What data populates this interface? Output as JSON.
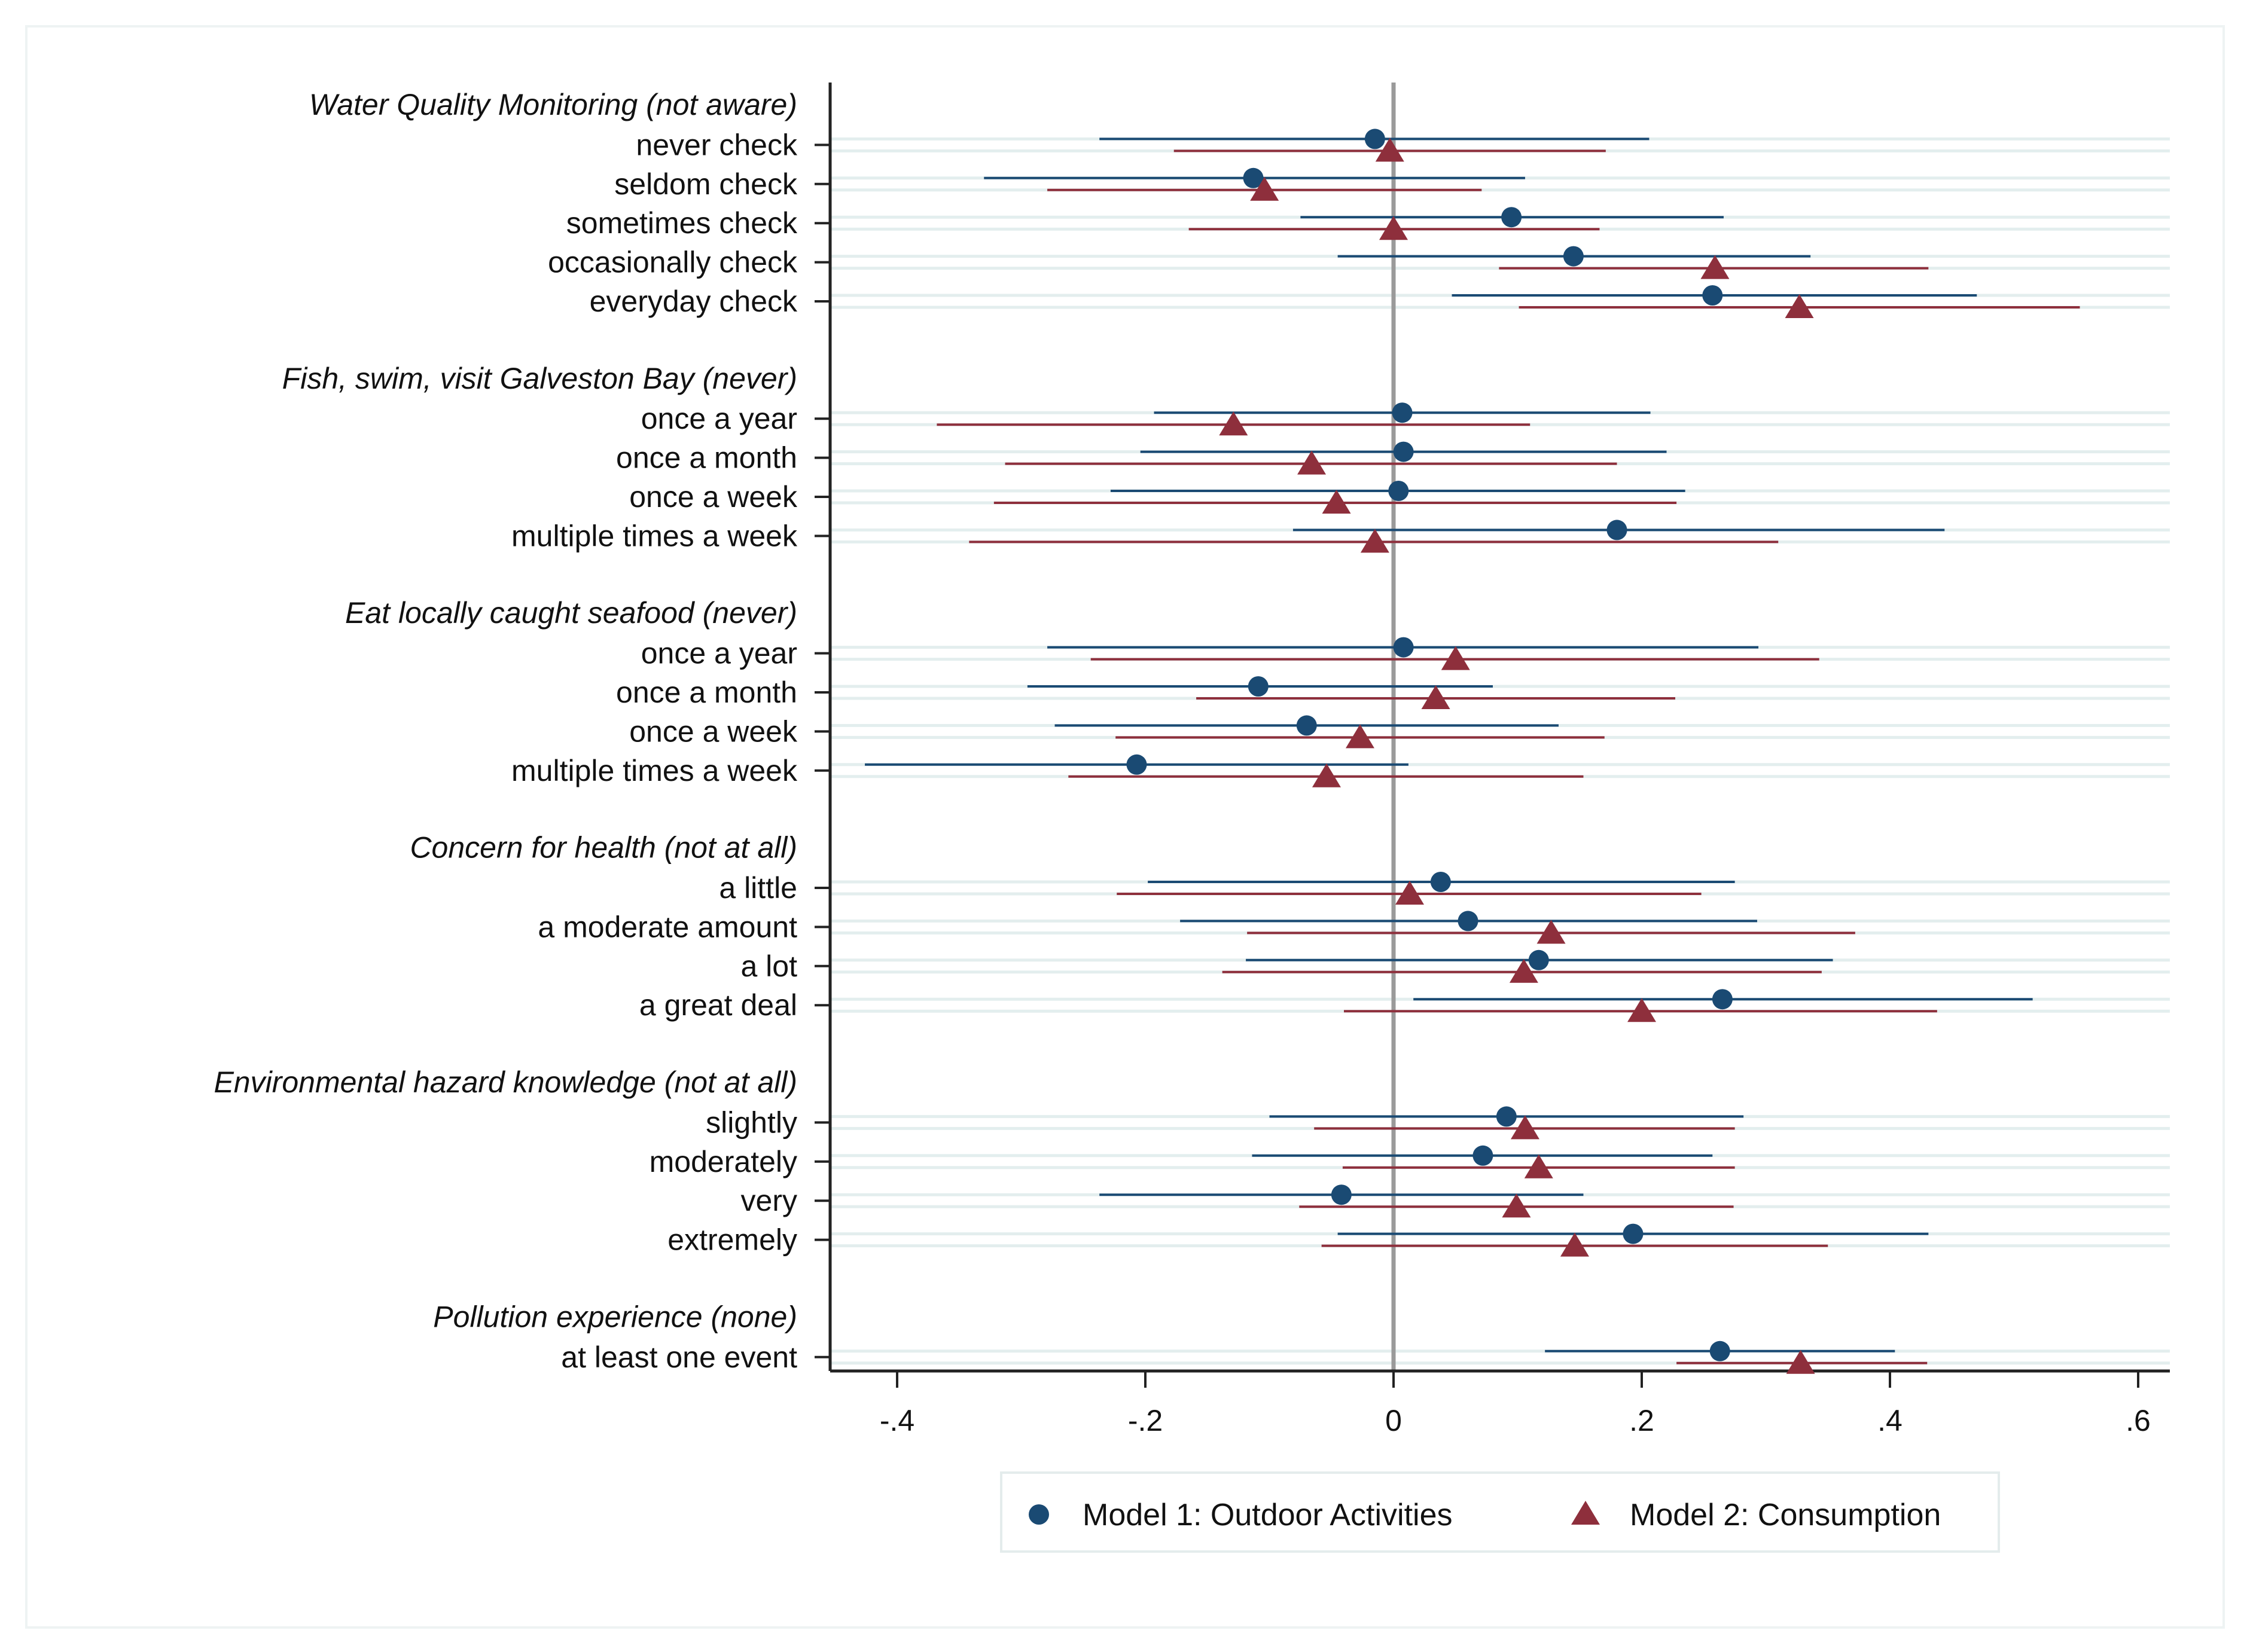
{
  "chart_data": {
    "type": "coefficient-plot",
    "title": "",
    "xlabel": "",
    "ylabel": "",
    "xlim": [
      -0.45,
      0.63
    ],
    "x_ticks": [
      -0.4,
      -0.2,
      0,
      0.2,
      0.4,
      0.6
    ],
    "x_tick_labels": [
      "-.4",
      "-.2",
      "0",
      ".2",
      ".4",
      ".6"
    ],
    "reference_line": 0,
    "grid": "horizontal",
    "legend_position": "bottom",
    "series": [
      {
        "name": "Model 1: Outdoor Activities",
        "marker": "circle",
        "color": "#1a4a73"
      },
      {
        "name": "Model 2: Consumption",
        "marker": "triangle",
        "color": "#8e2f3c"
      }
    ],
    "groups": [
      {
        "label": "Water Quality Monitoring (not aware)",
        "rows": [
          {
            "label": "never check",
            "m1": {
              "est": -0.015,
              "lo": -0.237,
              "hi": 0.206
            },
            "m2": {
              "est": -0.003,
              "lo": -0.177,
              "hi": 0.171
            }
          },
          {
            "label": "seldom check",
            "m1": {
              "est": -0.113,
              "lo": -0.33,
              "hi": 0.106
            },
            "m2": {
              "est": -0.104,
              "lo": -0.279,
              "hi": 0.071
            }
          },
          {
            "label": "sometimes check",
            "m1": {
              "est": 0.095,
              "lo": -0.075,
              "hi": 0.266
            },
            "m2": {
              "est": 0.0,
              "lo": -0.165,
              "hi": 0.166
            }
          },
          {
            "label": "occasionally check",
            "m1": {
              "est": 0.145,
              "lo": -0.045,
              "hi": 0.336
            },
            "m2": {
              "est": 0.259,
              "lo": 0.085,
              "hi": 0.431
            }
          },
          {
            "label": "everyday check",
            "m1": {
              "est": 0.257,
              "lo": 0.047,
              "hi": 0.47
            },
            "m2": {
              "est": 0.327,
              "lo": 0.101,
              "hi": 0.553
            }
          }
        ]
      },
      {
        "label": "Fish, swim, visit Galveston Bay (never)",
        "rows": [
          {
            "label": "once a year",
            "m1": {
              "est": 0.007,
              "lo": -0.193,
              "hi": 0.207
            },
            "m2": {
              "est": -0.129,
              "lo": -0.368,
              "hi": 0.11
            }
          },
          {
            "label": "once a month",
            "m1": {
              "est": 0.008,
              "lo": -0.204,
              "hi": 0.22
            },
            "m2": {
              "est": -0.066,
              "lo": -0.313,
              "hi": 0.18
            }
          },
          {
            "label": "once a week",
            "m1": {
              "est": 0.004,
              "lo": -0.228,
              "hi": 0.235
            },
            "m2": {
              "est": -0.046,
              "lo": -0.322,
              "hi": 0.228
            }
          },
          {
            "label": "multiple times a week",
            "m1": {
              "est": 0.18,
              "lo": -0.081,
              "hi": 0.444
            },
            "m2": {
              "est": -0.015,
              "lo": -0.342,
              "hi": 0.31
            }
          }
        ]
      },
      {
        "label": "Eat locally caught seafood (never)",
        "rows": [
          {
            "label": "once a year",
            "m1": {
              "est": 0.008,
              "lo": -0.279,
              "hi": 0.294
            },
            "m2": {
              "est": 0.05,
              "lo": -0.244,
              "hi": 0.343
            }
          },
          {
            "label": "once a month",
            "m1": {
              "est": -0.109,
              "lo": -0.295,
              "hi": 0.08
            },
            "m2": {
              "est": 0.034,
              "lo": -0.159,
              "hi": 0.227
            }
          },
          {
            "label": "once a week",
            "m1": {
              "est": -0.07,
              "lo": -0.273,
              "hi": 0.133
            },
            "m2": {
              "est": -0.027,
              "lo": -0.224,
              "hi": 0.17
            }
          },
          {
            "label": "multiple times a week",
            "m1": {
              "est": -0.207,
              "lo": -0.426,
              "hi": 0.012
            },
            "m2": {
              "est": -0.054,
              "lo": -0.262,
              "hi": 0.153
            }
          }
        ]
      },
      {
        "label": "Concern for health (not at all)",
        "rows": [
          {
            "label": "a little",
            "m1": {
              "est": 0.038,
              "lo": -0.198,
              "hi": 0.275
            },
            "m2": {
              "est": 0.013,
              "lo": -0.223,
              "hi": 0.248
            }
          },
          {
            "label": "a moderate amount",
            "m1": {
              "est": 0.06,
              "lo": -0.172,
              "hi": 0.293
            },
            "m2": {
              "est": 0.127,
              "lo": -0.118,
              "hi": 0.372
            }
          },
          {
            "label": "a lot",
            "m1": {
              "est": 0.117,
              "lo": -0.119,
              "hi": 0.354
            },
            "m2": {
              "est": 0.105,
              "lo": -0.138,
              "hi": 0.345
            }
          },
          {
            "label": "a great deal",
            "m1": {
              "est": 0.265,
              "lo": 0.016,
              "hi": 0.515
            },
            "m2": {
              "est": 0.2,
              "lo": -0.04,
              "hi": 0.438
            }
          }
        ]
      },
      {
        "label": "Environmental hazard knowledge (not at all)",
        "rows": [
          {
            "label": "slightly",
            "m1": {
              "est": 0.091,
              "lo": -0.1,
              "hi": 0.282
            },
            "m2": {
              "est": 0.106,
              "lo": -0.064,
              "hi": 0.275
            }
          },
          {
            "label": "moderately",
            "m1": {
              "est": 0.072,
              "lo": -0.114,
              "hi": 0.257
            },
            "m2": {
              "est": 0.117,
              "lo": -0.041,
              "hi": 0.275
            }
          },
          {
            "label": "very",
            "m1": {
              "est": -0.042,
              "lo": -0.237,
              "hi": 0.153
            },
            "m2": {
              "est": 0.099,
              "lo": -0.076,
              "hi": 0.274
            }
          },
          {
            "label": "extremely",
            "m1": {
              "est": 0.193,
              "lo": -0.045,
              "hi": 0.431
            },
            "m2": {
              "est": 0.146,
              "lo": -0.058,
              "hi": 0.35
            }
          }
        ]
      },
      {
        "label": "Pollution experience (none)",
        "rows": [
          {
            "label": "at least one event",
            "m1": {
              "est": 0.263,
              "lo": 0.122,
              "hi": 0.404
            },
            "m2": {
              "est": 0.328,
              "lo": 0.228,
              "hi": 0.43
            }
          }
        ]
      }
    ]
  }
}
